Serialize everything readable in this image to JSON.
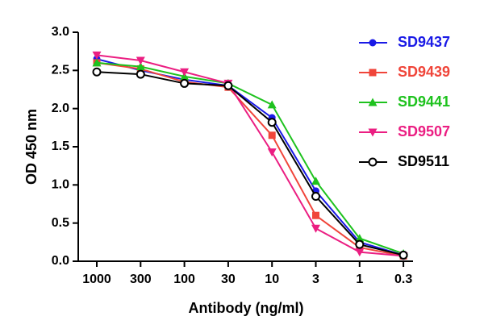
{
  "chart_data": {
    "type": "line",
    "x_label": "Antibody (ng/ml)",
    "y_label": "OD 450 nm",
    "categories": [
      "1000",
      "300",
      "100",
      "30",
      "10",
      "3",
      "1",
      "0.3"
    ],
    "ylim": [
      0,
      3
    ],
    "yticks": [
      {
        "value": 0,
        "label": "0.0"
      },
      {
        "value": 0.5,
        "label": "0.5"
      },
      {
        "value": 1,
        "label": "1.0"
      },
      {
        "value": 1.5,
        "label": "1.5"
      },
      {
        "value": 2,
        "label": "2.0"
      },
      {
        "value": 2.5,
        "label": "2.5"
      },
      {
        "value": 3,
        "label": "3.0"
      }
    ],
    "legend": "upper right",
    "series": [
      {
        "name": "SD9437",
        "color": "#1a1ae6",
        "marker": "circle",
        "values": [
          2.65,
          2.5,
          2.38,
          2.3,
          1.88,
          0.92,
          0.25,
          0.08
        ]
      },
      {
        "name": "SD9439",
        "color": "#f0453a",
        "marker": "square",
        "values": [
          2.6,
          2.52,
          2.35,
          2.28,
          1.65,
          0.6,
          0.18,
          0.07
        ]
      },
      {
        "name": "SD9441",
        "color": "#1ec21e",
        "marker": "triangle-up",
        "values": [
          2.6,
          2.55,
          2.42,
          2.33,
          2.05,
          1.05,
          0.3,
          0.1
        ]
      },
      {
        "name": "SD9507",
        "color": "#eb1e82",
        "marker": "triangle-down",
        "values": [
          2.7,
          2.63,
          2.48,
          2.33,
          1.43,
          0.43,
          0.12,
          0.07
        ]
      },
      {
        "name": "SD9511",
        "color": "#000000",
        "marker": "open-circle",
        "values": [
          2.48,
          2.45,
          2.33,
          2.3,
          1.82,
          0.85,
          0.22,
          0.08
        ]
      }
    ]
  }
}
